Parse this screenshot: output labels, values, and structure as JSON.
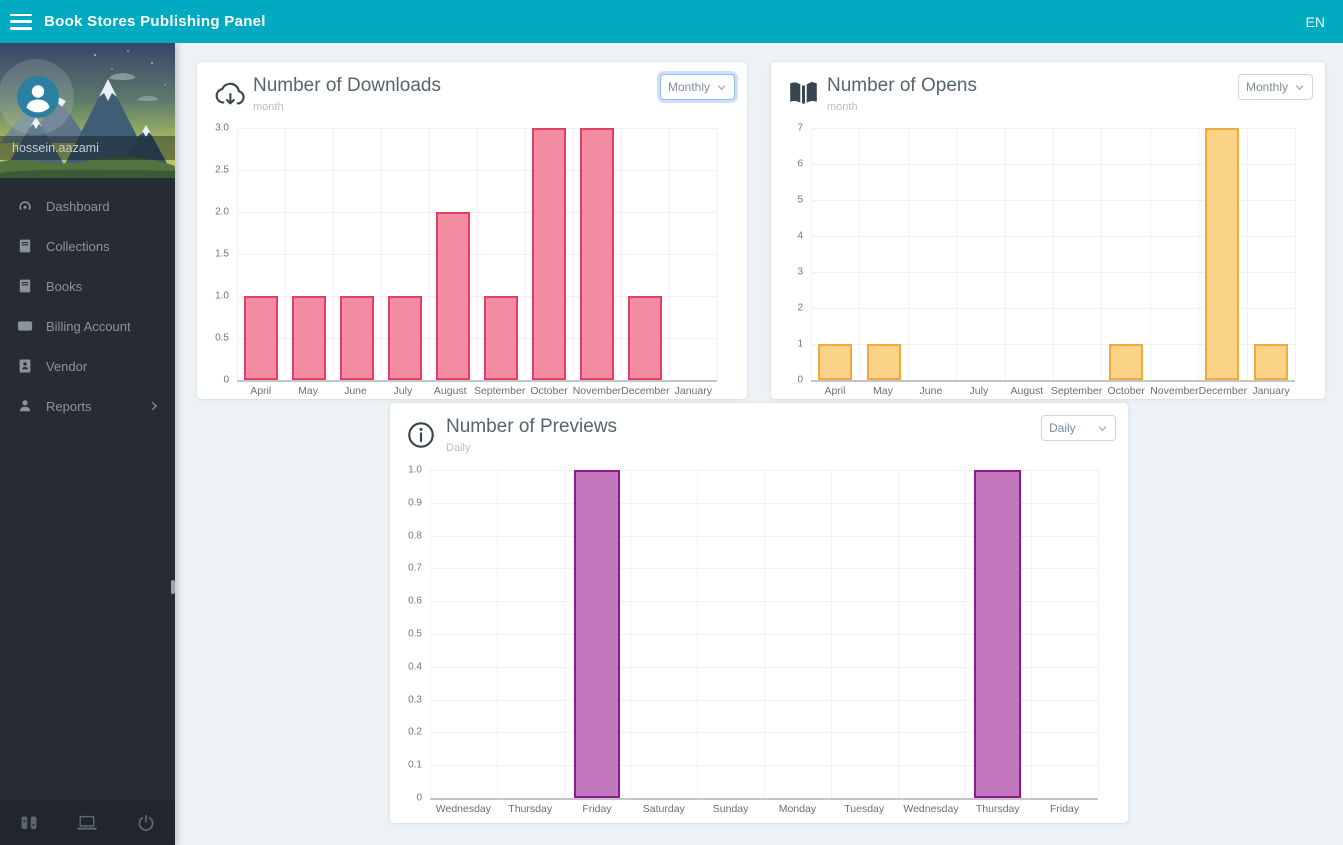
{
  "header": {
    "title": "Book Stores Publishing Panel",
    "language": "EN",
    "menu_icon": "hamburger-icon",
    "color": "#00abc2"
  },
  "sidebar": {
    "username": "hossein.aazami",
    "items": [
      {
        "label": "Dashboard",
        "icon": "dashboard-icon"
      },
      {
        "label": "Collections",
        "icon": "book-icon"
      },
      {
        "label": "Books",
        "icon": "book-icon"
      },
      {
        "label": "Billing Account",
        "icon": "billing-icon"
      },
      {
        "label": "Vendor",
        "icon": "vendor-icon"
      },
      {
        "label": "Reports",
        "icon": "reports-icon",
        "has_submenu": true
      }
    ],
    "footer_icons": [
      "mobile-device-icon",
      "laptop-icon",
      "power-icon"
    ]
  },
  "chart_data": [
    {
      "type": "bar",
      "title": "Number of Downloads",
      "subtitle": "month",
      "icon": "cloud-download-icon",
      "period_selector": "Monthly",
      "categories": [
        "April",
        "May",
        "June",
        "July",
        "August",
        "September",
        "October",
        "November",
        "December",
        "January"
      ],
      "values": [
        1,
        1,
        1,
        1,
        2,
        1,
        3,
        3,
        1,
        0
      ],
      "ylim": [
        0,
        3
      ],
      "yticks": [
        "3.0",
        "2.5",
        "2.0",
        "1.5",
        "1.0",
        "0.5",
        "0"
      ],
      "bar_fill": "#f28ca2",
      "bar_border": "#e53e60",
      "grid": true,
      "legend": "none"
    },
    {
      "type": "bar",
      "title": "Number of Opens",
      "subtitle": "month",
      "icon": "open-book-icon",
      "period_selector": "Monthly",
      "categories": [
        "April",
        "May",
        "June",
        "July",
        "August",
        "September",
        "October",
        "November",
        "December",
        "January"
      ],
      "values": [
        1,
        1,
        0,
        0,
        0,
        0,
        1,
        0,
        7,
        1
      ],
      "ylim": [
        0,
        7
      ],
      "yticks": [
        "7",
        "6",
        "5",
        "4",
        "3",
        "2",
        "1",
        "0"
      ],
      "bar_fill": "#fad389",
      "bar_border": "#efa93c",
      "grid": true,
      "legend": "none"
    },
    {
      "type": "bar",
      "title": "Number of Previews",
      "subtitle": "Daily",
      "icon": "info-icon",
      "period_selector": "Daily",
      "categories": [
        "Wednesday",
        "Thursday",
        "Friday",
        "Saturday",
        "Sunday",
        "Monday",
        "Tuesday",
        "Wednesday",
        "Thursday",
        "Friday"
      ],
      "values": [
        0,
        0,
        1,
        0,
        0,
        0,
        0,
        0,
        1,
        0
      ],
      "ylim": [
        0,
        1
      ],
      "yticks": [
        "1.0",
        "0.9",
        "0.8",
        "0.7",
        "0.6",
        "0.5",
        "0.4",
        "0.3",
        "0.2",
        "0.1",
        "0"
      ],
      "bar_fill": "#c377bd",
      "bar_border": "#8e188c",
      "grid": true,
      "legend": "none"
    }
  ]
}
